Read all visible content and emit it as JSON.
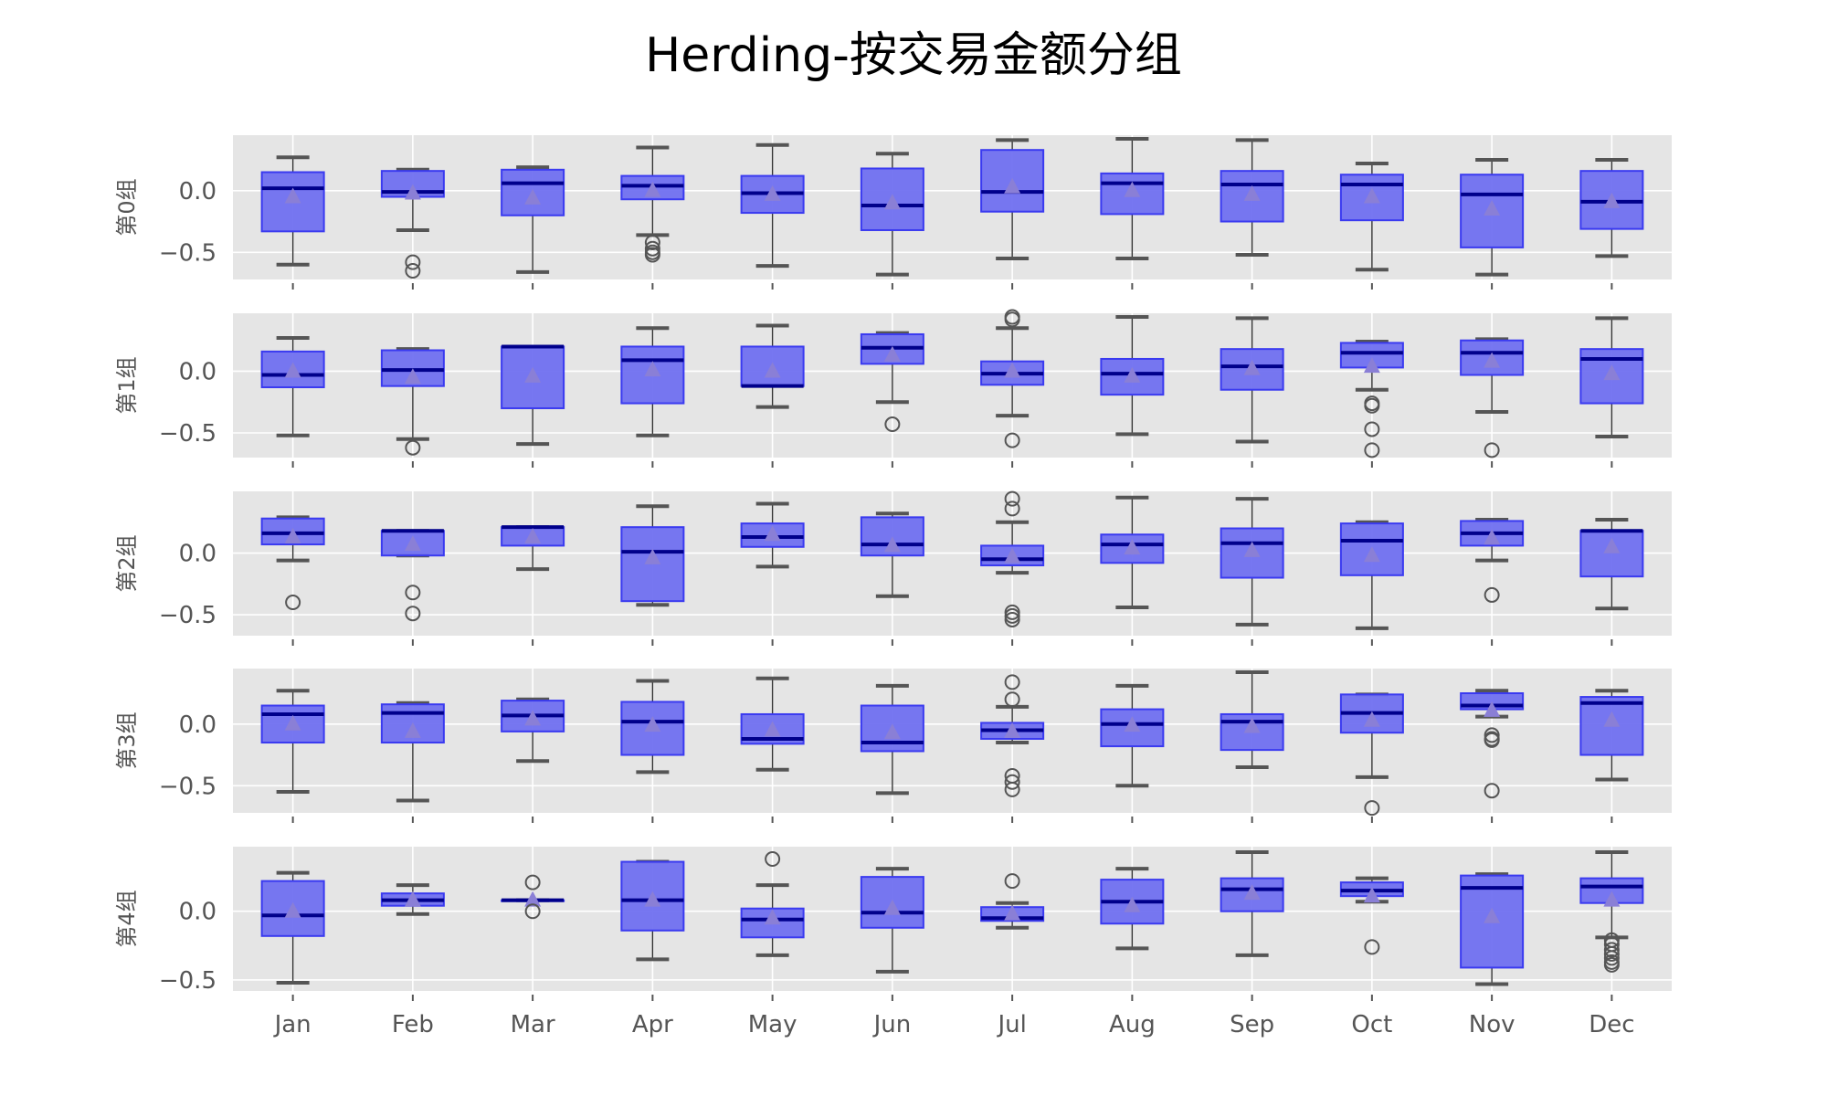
{
  "chart_data": {
    "type": "box",
    "title": "Herding-按交易金额分组",
    "categories": [
      "Jan",
      "Feb",
      "Mar",
      "Apr",
      "May",
      "Jun",
      "Jul",
      "Aug",
      "Sep",
      "Oct",
      "Nov",
      "Dec"
    ],
    "ylim": [
      -0.7,
      0.45
    ],
    "yticks": [
      0.0,
      -0.5
    ],
    "ytick_labels": [
      "0.0",
      "−0.5"
    ],
    "grid": true,
    "style": "ggplot",
    "colors": {
      "box_fill": "#7070f0",
      "box_edge": "#3a3af0",
      "median": "#00008b",
      "mean_marker": "#8a7fd6",
      "whisker": "#555555",
      "flier": "#555555",
      "panel_bg": "#e5e5e5",
      "grid": "#ffffff"
    },
    "panels": [
      {
        "label": "第0组",
        "ylim": [
          -0.72,
          0.45
        ],
        "boxes": [
          {
            "q1": -0.33,
            "median": 0.02,
            "q3": 0.15,
            "whislo": -0.6,
            "whishi": 0.27,
            "mean": -0.05,
            "fliers": []
          },
          {
            "q1": -0.05,
            "median": -0.01,
            "q3": 0.16,
            "whislo": -0.32,
            "whishi": 0.17,
            "mean": -0.02,
            "fliers": [
              -0.58,
              -0.65
            ]
          },
          {
            "q1": -0.2,
            "median": 0.06,
            "q3": 0.17,
            "whislo": -0.66,
            "whishi": 0.19,
            "mean": -0.06,
            "fliers": []
          },
          {
            "q1": -0.07,
            "median": 0.04,
            "q3": 0.12,
            "whislo": -0.36,
            "whishi": 0.35,
            "mean": 0.0,
            "fliers": [
              -0.42,
              -0.47,
              -0.5,
              -0.52
            ]
          },
          {
            "q1": -0.18,
            "median": -0.02,
            "q3": 0.12,
            "whislo": -0.61,
            "whishi": 0.37,
            "mean": -0.03,
            "fliers": []
          },
          {
            "q1": -0.32,
            "median": -0.12,
            "q3": 0.18,
            "whislo": -0.68,
            "whishi": 0.3,
            "mean": -0.1,
            "fliers": []
          },
          {
            "q1": -0.17,
            "median": -0.01,
            "q3": 0.33,
            "whislo": -0.55,
            "whishi": 0.41,
            "mean": 0.03,
            "fliers": []
          },
          {
            "q1": -0.19,
            "median": 0.06,
            "q3": 0.14,
            "whislo": -0.55,
            "whishi": 0.42,
            "mean": 0.0,
            "fliers": []
          },
          {
            "q1": -0.25,
            "median": 0.05,
            "q3": 0.16,
            "whislo": -0.52,
            "whishi": 0.41,
            "mean": -0.03,
            "fliers": []
          },
          {
            "q1": -0.24,
            "median": 0.05,
            "q3": 0.13,
            "whislo": -0.64,
            "whishi": 0.22,
            "mean": -0.05,
            "fliers": []
          },
          {
            "q1": -0.46,
            "median": -0.03,
            "q3": 0.13,
            "whislo": -0.68,
            "whishi": 0.25,
            "mean": -0.15,
            "fliers": []
          },
          {
            "q1": -0.31,
            "median": -0.09,
            "q3": 0.16,
            "whislo": -0.53,
            "whishi": 0.25,
            "mean": -0.09,
            "fliers": []
          }
        ]
      },
      {
        "label": "第1组",
        "ylim": [
          -0.7,
          0.47
        ],
        "boxes": [
          {
            "q1": -0.13,
            "median": -0.03,
            "q3": 0.16,
            "whislo": -0.52,
            "whishi": 0.27,
            "mean": 0.0,
            "fliers": []
          },
          {
            "q1": -0.12,
            "median": 0.01,
            "q3": 0.17,
            "whislo": -0.55,
            "whishi": 0.18,
            "mean": -0.05,
            "fliers": [
              -0.62
            ]
          },
          {
            "q1": -0.3,
            "median": 0.2,
            "q3": 0.2,
            "whislo": -0.59,
            "whishi": 0.2,
            "mean": -0.04,
            "fliers": []
          },
          {
            "q1": -0.26,
            "median": 0.09,
            "q3": 0.2,
            "whislo": -0.52,
            "whishi": 0.35,
            "mean": 0.01,
            "fliers": []
          },
          {
            "q1": -0.12,
            "median": -0.12,
            "q3": 0.2,
            "whislo": -0.29,
            "whishi": 0.37,
            "mean": 0.0,
            "fliers": []
          },
          {
            "q1": 0.06,
            "median": 0.19,
            "q3": 0.3,
            "whislo": -0.25,
            "whishi": 0.31,
            "mean": 0.13,
            "fliers": [
              -0.43
            ]
          },
          {
            "q1": -0.11,
            "median": -0.02,
            "q3": 0.08,
            "whislo": -0.36,
            "whishi": 0.35,
            "mean": 0.0,
            "fliers": [
              -0.56,
              0.42,
              0.44
            ]
          },
          {
            "q1": -0.19,
            "median": -0.02,
            "q3": 0.1,
            "whislo": -0.51,
            "whishi": 0.44,
            "mean": -0.04,
            "fliers": []
          },
          {
            "q1": -0.15,
            "median": 0.04,
            "q3": 0.18,
            "whislo": -0.57,
            "whishi": 0.43,
            "mean": 0.02,
            "fliers": []
          },
          {
            "q1": 0.03,
            "median": 0.15,
            "q3": 0.23,
            "whislo": -0.15,
            "whishi": 0.24,
            "mean": 0.04,
            "fliers": [
              -0.26,
              -0.28,
              -0.47,
              -0.64
            ]
          },
          {
            "q1": -0.03,
            "median": 0.15,
            "q3": 0.25,
            "whislo": -0.33,
            "whishi": 0.26,
            "mean": 0.08,
            "fliers": [
              -0.64
            ]
          },
          {
            "q1": -0.26,
            "median": 0.1,
            "q3": 0.18,
            "whislo": -0.53,
            "whishi": 0.43,
            "mean": -0.02,
            "fliers": []
          }
        ]
      },
      {
        "label": "第2组",
        "ylim": [
          -0.67,
          0.5
        ],
        "boxes": [
          {
            "q1": 0.07,
            "median": 0.16,
            "q3": 0.28,
            "whislo": -0.06,
            "whishi": 0.29,
            "mean": 0.13,
            "fliers": [
              -0.4
            ]
          },
          {
            "q1": -0.02,
            "median": 0.18,
            "q3": 0.18,
            "whislo": -0.02,
            "whishi": 0.18,
            "mean": 0.07,
            "fliers": [
              -0.32,
              -0.49
            ]
          },
          {
            "q1": 0.06,
            "median": 0.21,
            "q3": 0.21,
            "whislo": -0.13,
            "whishi": 0.21,
            "mean": 0.13,
            "fliers": []
          },
          {
            "q1": -0.39,
            "median": 0.01,
            "q3": 0.21,
            "whislo": -0.42,
            "whishi": 0.38,
            "mean": -0.04,
            "fliers": []
          },
          {
            "q1": 0.05,
            "median": 0.13,
            "q3": 0.24,
            "whislo": -0.11,
            "whishi": 0.4,
            "mean": 0.15,
            "fliers": []
          },
          {
            "q1": -0.02,
            "median": 0.07,
            "q3": 0.29,
            "whislo": -0.35,
            "whishi": 0.32,
            "mean": 0.06,
            "fliers": []
          },
          {
            "q1": -0.1,
            "median": -0.05,
            "q3": 0.06,
            "whislo": -0.16,
            "whishi": 0.25,
            "mean": -0.03,
            "fliers": [
              -0.48,
              -0.51,
              -0.54,
              0.36,
              0.44
            ]
          },
          {
            "q1": -0.08,
            "median": 0.07,
            "q3": 0.15,
            "whislo": -0.44,
            "whishi": 0.45,
            "mean": 0.04,
            "fliers": []
          },
          {
            "q1": -0.2,
            "median": 0.08,
            "q3": 0.2,
            "whislo": -0.58,
            "whishi": 0.44,
            "mean": 0.02,
            "fliers": []
          },
          {
            "q1": -0.18,
            "median": 0.1,
            "q3": 0.24,
            "whislo": -0.61,
            "whishi": 0.25,
            "mean": -0.02,
            "fliers": []
          },
          {
            "q1": 0.06,
            "median": 0.16,
            "q3": 0.26,
            "whislo": -0.06,
            "whishi": 0.27,
            "mean": 0.12,
            "fliers": [
              -0.34
            ]
          },
          {
            "q1": -0.19,
            "median": 0.18,
            "q3": 0.18,
            "whislo": -0.45,
            "whishi": 0.27,
            "mean": 0.05,
            "fliers": []
          }
        ]
      },
      {
        "label": "第3组",
        "ylim": [
          -0.72,
          0.45
        ],
        "boxes": [
          {
            "q1": -0.15,
            "median": 0.08,
            "q3": 0.15,
            "whislo": -0.55,
            "whishi": 0.27,
            "mean": 0.0,
            "fliers": []
          },
          {
            "q1": -0.15,
            "median": 0.09,
            "q3": 0.16,
            "whislo": -0.62,
            "whishi": 0.17,
            "mean": -0.06,
            "fliers": []
          },
          {
            "q1": -0.06,
            "median": 0.07,
            "q3": 0.19,
            "whislo": -0.3,
            "whishi": 0.2,
            "mean": 0.04,
            "fliers": []
          },
          {
            "q1": -0.25,
            "median": 0.02,
            "q3": 0.18,
            "whislo": -0.39,
            "whishi": 0.35,
            "mean": -0.01,
            "fliers": []
          },
          {
            "q1": -0.16,
            "median": -0.12,
            "q3": 0.08,
            "whislo": -0.37,
            "whishi": 0.37,
            "mean": -0.05,
            "fliers": []
          },
          {
            "q1": -0.22,
            "median": -0.15,
            "q3": 0.15,
            "whislo": -0.56,
            "whishi": 0.31,
            "mean": -0.07,
            "fliers": []
          },
          {
            "q1": -0.12,
            "median": -0.05,
            "q3": 0.01,
            "whislo": -0.15,
            "whishi": 0.14,
            "mean": -0.06,
            "fliers": [
              -0.42,
              -0.47,
              -0.53,
              0.2,
              0.34
            ]
          },
          {
            "q1": -0.18,
            "median": 0.0,
            "q3": 0.12,
            "whislo": -0.5,
            "whishi": 0.31,
            "mean": -0.01,
            "fliers": []
          },
          {
            "q1": -0.21,
            "median": 0.02,
            "q3": 0.08,
            "whislo": -0.35,
            "whishi": 0.42,
            "mean": -0.02,
            "fliers": []
          },
          {
            "q1": -0.07,
            "median": 0.09,
            "q3": 0.24,
            "whislo": -0.43,
            "whishi": 0.24,
            "mean": 0.03,
            "fliers": [
              -0.68
            ]
          },
          {
            "q1": 0.12,
            "median": 0.15,
            "q3": 0.25,
            "whislo": 0.06,
            "whishi": 0.27,
            "mean": 0.11,
            "fliers": [
              -0.09,
              -0.12,
              -0.13,
              -0.54
            ]
          },
          {
            "q1": -0.25,
            "median": 0.17,
            "q3": 0.22,
            "whislo": -0.45,
            "whishi": 0.27,
            "mean": 0.03,
            "fliers": []
          }
        ]
      },
      {
        "label": "第4组",
        "ylim": [
          -0.58,
          0.47
        ],
        "boxes": [
          {
            "q1": -0.18,
            "median": -0.03,
            "q3": 0.22,
            "whislo": -0.52,
            "whishi": 0.28,
            "mean": 0.0,
            "fliers": []
          },
          {
            "q1": 0.04,
            "median": 0.08,
            "q3": 0.13,
            "whislo": -0.02,
            "whishi": 0.19,
            "mean": 0.08,
            "fliers": []
          },
          {
            "q1": 0.08,
            "median": 0.08,
            "q3": 0.08,
            "whislo": 0.08,
            "whishi": 0.08,
            "mean": 0.08,
            "fliers": [
              0.21,
              0.0
            ]
          },
          {
            "q1": -0.14,
            "median": 0.08,
            "q3": 0.36,
            "whislo": -0.35,
            "whishi": 0.36,
            "mean": 0.08,
            "fliers": []
          },
          {
            "q1": -0.19,
            "median": -0.06,
            "q3": 0.02,
            "whislo": -0.32,
            "whishi": 0.19,
            "mean": -0.05,
            "fliers": [
              0.38
            ]
          },
          {
            "q1": -0.12,
            "median": -0.01,
            "q3": 0.25,
            "whislo": -0.44,
            "whishi": 0.31,
            "mean": 0.02,
            "fliers": []
          },
          {
            "q1": -0.07,
            "median": -0.05,
            "q3": 0.03,
            "whislo": -0.12,
            "whishi": 0.06,
            "mean": -0.02,
            "fliers": [
              0.22
            ]
          },
          {
            "q1": -0.09,
            "median": 0.07,
            "q3": 0.23,
            "whislo": -0.27,
            "whishi": 0.31,
            "mean": 0.04,
            "fliers": []
          },
          {
            "q1": 0.0,
            "median": 0.16,
            "q3": 0.24,
            "whislo": -0.32,
            "whishi": 0.43,
            "mean": 0.13,
            "fliers": []
          },
          {
            "q1": 0.11,
            "median": 0.15,
            "q3": 0.21,
            "whislo": 0.07,
            "whishi": 0.24,
            "mean": 0.11,
            "fliers": [
              -0.26
            ]
          },
          {
            "q1": -0.41,
            "median": 0.17,
            "q3": 0.26,
            "whislo": -0.53,
            "whishi": 0.27,
            "mean": -0.04,
            "fliers": []
          },
          {
            "q1": 0.06,
            "median": 0.18,
            "q3": 0.24,
            "whislo": -0.19,
            "whishi": 0.43,
            "mean": 0.08,
            "fliers": [
              -0.21,
              -0.24,
              -0.28,
              -0.31,
              -0.34,
              -0.37,
              -0.39
            ]
          }
        ]
      }
    ]
  }
}
